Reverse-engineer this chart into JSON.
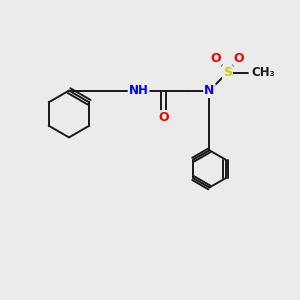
{
  "bg_color": "#ebebeb",
  "bond_color": "#1a1a1a",
  "bond_width": 1.4,
  "atom_colors": {
    "N": "#0000ee",
    "O": "#ee0000",
    "S": "#cccc00",
    "H": "#5a9090",
    "C": "#1a1a1a"
  },
  "figsize": [
    3.0,
    3.0
  ],
  "dpi": 100,
  "xlim": [
    0,
    10
  ],
  "ylim": [
    0,
    10
  ]
}
